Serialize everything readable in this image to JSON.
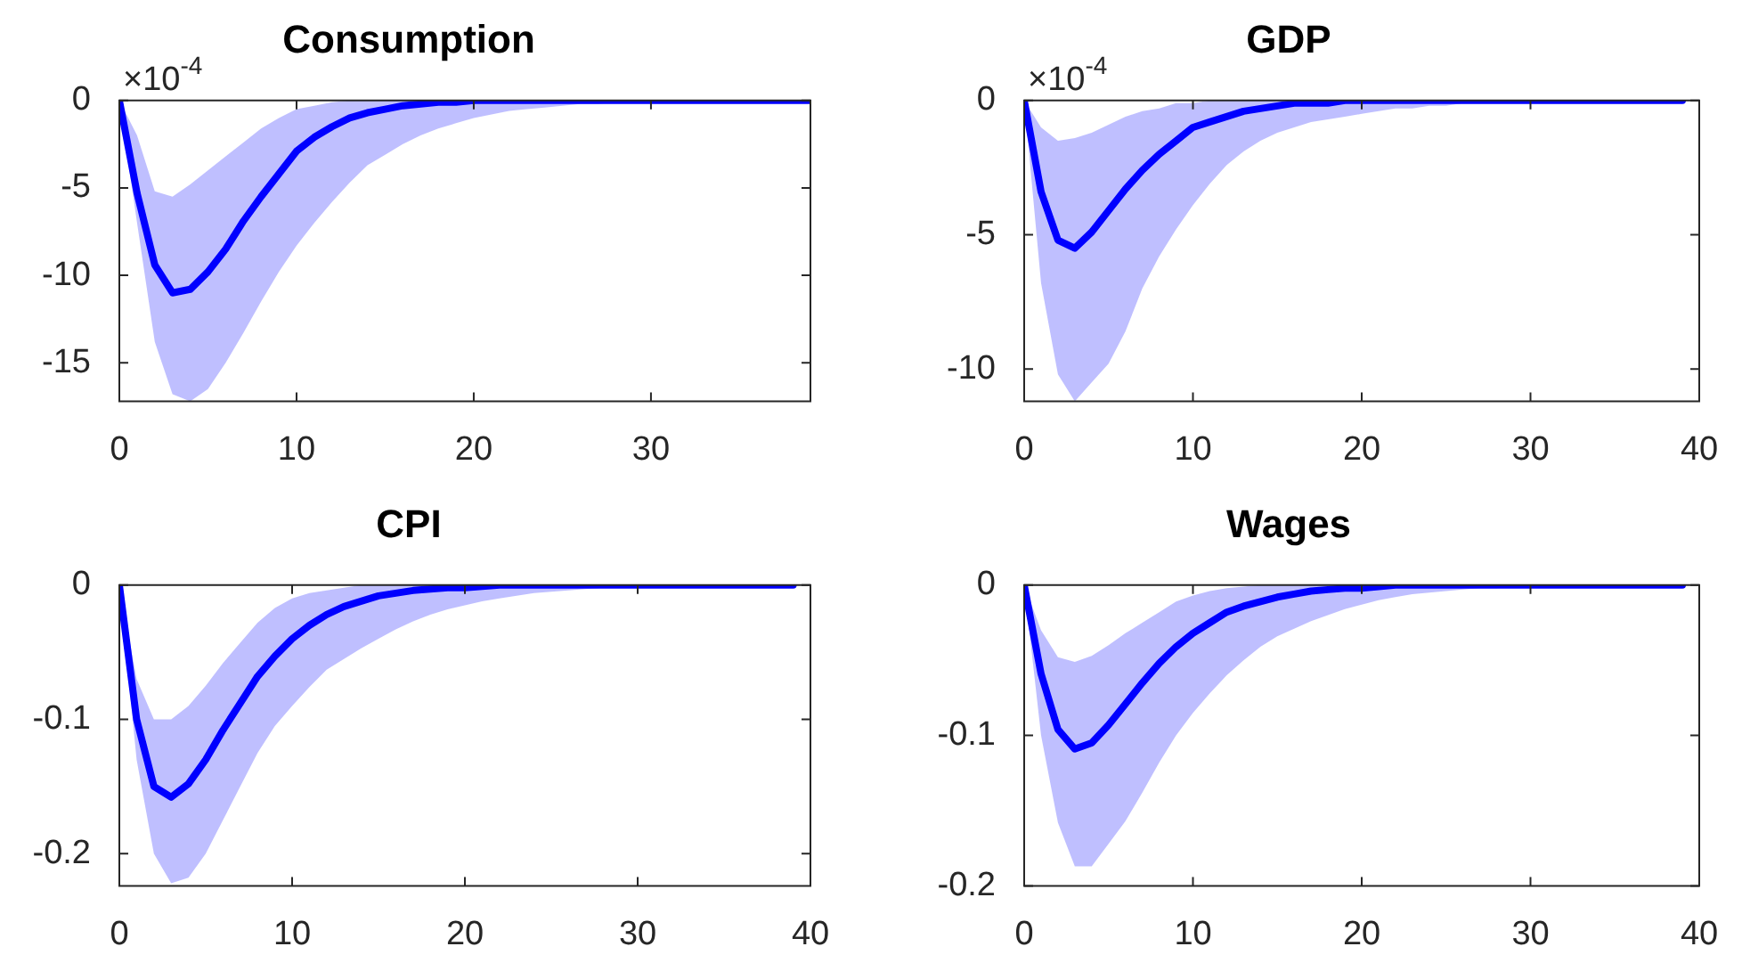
{
  "chart_data": [
    {
      "type": "line",
      "title": "Consumption",
      "annotations": [
        "×10$^{-4}$"
      ],
      "x": [
        0,
        1,
        2,
        3,
        4,
        5,
        6,
        7,
        8,
        9,
        10,
        11,
        12,
        13,
        14,
        15,
        16,
        17,
        18,
        19,
        20,
        21,
        22,
        23,
        24,
        25,
        26,
        27,
        28,
        29,
        30,
        31,
        32,
        33,
        34,
        35,
        36,
        37,
        38,
        39
      ],
      "xlim": [
        0,
        39
      ],
      "xticks": [
        0,
        10,
        20,
        30
      ],
      "ylim": [
        -17.2,
        0
      ],
      "yticks": [
        -15,
        -10,
        -5,
        0
      ],
      "series": [
        {
          "color": "#0000ff",
          "values": [
            0,
            -5.3,
            -9.4,
            -11,
            -10.8,
            -9.8,
            -8.5,
            -6.9,
            -5.5,
            -4.2,
            -2.9,
            -2.1,
            -1.5,
            -1,
            -0.7,
            -0.5,
            -0.3,
            -0.2,
            -0.1,
            -0.1,
            0,
            0,
            0,
            0,
            0,
            0,
            0,
            0,
            0,
            0,
            0,
            0,
            0,
            0,
            0,
            0,
            0,
            0,
            0,
            0
          ],
          "upper": [
            0,
            -2,
            -5.2,
            -5.5,
            -4.8,
            -4,
            -3.2,
            -2.4,
            -1.6,
            -1,
            -0.5,
            -0.3,
            -0.1,
            0,
            0,
            0,
            0,
            0,
            0,
            0,
            0,
            0,
            0,
            0,
            0,
            0,
            0,
            0,
            0,
            0,
            0,
            0,
            0,
            0,
            0,
            0,
            0,
            0,
            0,
            0
          ],
          "lower": [
            0,
            -7,
            -13.8,
            -16.8,
            -17.2,
            -16.5,
            -15,
            -13.3,
            -11.5,
            -9.8,
            -8.3,
            -7,
            -5.8,
            -4.7,
            -3.7,
            -3.1,
            -2.5,
            -2,
            -1.6,
            -1.3,
            -1,
            -0.8,
            -0.6,
            -0.5,
            -0.4,
            -0.3,
            -0.2,
            -0.2,
            -0.1,
            -0.1,
            0,
            0,
            0,
            0,
            0,
            0,
            0,
            0,
            0,
            0
          ]
        }
      ]
    },
    {
      "type": "line",
      "title": "GDP",
      "annotations": [
        "×10$^{-4}$"
      ],
      "x": [
        0,
        1,
        2,
        3,
        4,
        5,
        6,
        7,
        8,
        9,
        10,
        11,
        12,
        13,
        14,
        15,
        16,
        17,
        18,
        19,
        20,
        21,
        22,
        23,
        24,
        25,
        26,
        27,
        28,
        29,
        30,
        31,
        32,
        33,
        34,
        35,
        36,
        37,
        38,
        39
      ],
      "xlim": [
        0,
        40
      ],
      "xticks": [
        0,
        10,
        20,
        30,
        40
      ],
      "ylim": [
        -11.2,
        0
      ],
      "yticks": [
        -10,
        -5,
        0
      ],
      "series": [
        {
          "color": "#0000ff",
          "values": [
            0,
            -3.4,
            -5.2,
            -5.5,
            -4.9,
            -4.1,
            -3.3,
            -2.6,
            -2,
            -1.5,
            -1,
            -0.8,
            -0.6,
            -0.4,
            -0.3,
            -0.2,
            -0.1,
            -0.1,
            -0.1,
            0,
            0,
            0,
            0,
            0,
            0,
            0,
            0,
            0,
            0,
            0,
            0,
            0,
            0,
            0,
            0,
            0,
            0,
            0,
            0,
            0
          ],
          "upper": [
            0,
            -1,
            -1.5,
            -1.4,
            -1.2,
            -0.9,
            -0.6,
            -0.4,
            -0.3,
            -0.1,
            -0.1,
            0,
            0,
            0,
            0,
            0,
            0,
            0,
            0,
            0,
            0,
            0,
            0,
            0,
            0,
            0,
            0,
            0,
            0,
            0,
            0,
            0,
            0,
            0,
            0,
            0,
            0,
            0,
            0,
            0
          ],
          "lower": [
            0,
            -6.8,
            -10.2,
            -11.2,
            -10.5,
            -9.8,
            -8.6,
            -7,
            -5.8,
            -4.8,
            -3.9,
            -3.1,
            -2.4,
            -1.9,
            -1.5,
            -1.2,
            -1,
            -0.8,
            -0.7,
            -0.6,
            -0.5,
            -0.4,
            -0.3,
            -0.3,
            -0.2,
            -0.2,
            -0.1,
            -0.1,
            -0.1,
            -0.1,
            0,
            0,
            0,
            0,
            0,
            0,
            0,
            0,
            0,
            0
          ]
        }
      ]
    },
    {
      "type": "line",
      "title": "CPI",
      "x": [
        0,
        1,
        2,
        3,
        4,
        5,
        6,
        7,
        8,
        9,
        10,
        11,
        12,
        13,
        14,
        15,
        16,
        17,
        18,
        19,
        20,
        21,
        22,
        23,
        24,
        25,
        26,
        27,
        28,
        29,
        30,
        31,
        32,
        33,
        34,
        35,
        36,
        37,
        38,
        39
      ],
      "xlim": [
        0,
        40
      ],
      "xticks": [
        0,
        10,
        20,
        30,
        40
      ],
      "ylim": [
        -0.224,
        0
      ],
      "yticks": [
        -0.2,
        -0.1,
        0
      ],
      "series": [
        {
          "color": "#0000ff",
          "values": [
            0,
            -0.1,
            -0.15,
            -0.158,
            -0.148,
            -0.13,
            -0.108,
            -0.088,
            -0.068,
            -0.053,
            -0.04,
            -0.03,
            -0.022,
            -0.016,
            -0.012,
            -0.008,
            -0.006,
            -0.004,
            -0.003,
            -0.002,
            -0.002,
            -0.001,
            0,
            0,
            0,
            0,
            0,
            0,
            0,
            0,
            0,
            0,
            0,
            0,
            0,
            0,
            0,
            0,
            0,
            0
          ],
          "upper": [
            0,
            -0.07,
            -0.1,
            -0.1,
            -0.09,
            -0.075,
            -0.058,
            -0.043,
            -0.028,
            -0.017,
            -0.01,
            -0.006,
            -0.004,
            -0.002,
            0,
            0,
            0,
            0,
            0,
            0,
            0,
            0,
            0,
            0,
            0,
            0,
            0,
            0,
            0,
            0,
            0,
            0,
            0,
            0,
            0,
            0,
            0,
            0,
            0,
            0
          ],
          "lower": [
            0,
            -0.13,
            -0.2,
            -0.222,
            -0.218,
            -0.2,
            -0.175,
            -0.15,
            -0.125,
            -0.105,
            -0.09,
            -0.076,
            -0.063,
            -0.055,
            -0.047,
            -0.04,
            -0.033,
            -0.027,
            -0.022,
            -0.018,
            -0.015,
            -0.012,
            -0.01,
            -0.008,
            -0.006,
            -0.005,
            -0.004,
            -0.003,
            -0.002,
            -0.002,
            -0.001,
            0,
            0,
            0,
            0,
            0,
            0,
            0,
            0,
            0
          ]
        }
      ]
    },
    {
      "type": "line",
      "title": "Wages",
      "x": [
        0,
        1,
        2,
        3,
        4,
        5,
        6,
        7,
        8,
        9,
        10,
        11,
        12,
        13,
        14,
        15,
        16,
        17,
        18,
        19,
        20,
        21,
        22,
        23,
        24,
        25,
        26,
        27,
        28,
        29,
        30,
        31,
        32,
        33,
        34,
        35,
        36,
        37,
        38,
        39
      ],
      "xlim": [
        0,
        40
      ],
      "xticks": [
        0,
        10,
        20,
        30,
        40
      ],
      "ylim": [
        -0.2,
        0
      ],
      "yticks": [
        -0.2,
        -0.1,
        0
      ],
      "series": [
        {
          "color": "#0000ff",
          "values": [
            0,
            -0.059,
            -0.096,
            -0.109,
            -0.105,
            -0.093,
            -0.079,
            -0.065,
            -0.052,
            -0.041,
            -0.032,
            -0.025,
            -0.018,
            -0.014,
            -0.011,
            -0.008,
            -0.006,
            -0.004,
            -0.003,
            -0.002,
            -0.002,
            -0.001,
            0,
            0,
            0,
            0,
            0,
            0,
            0,
            0,
            0,
            0,
            0,
            0,
            0,
            0,
            0,
            0,
            0,
            0
          ],
          "upper": [
            0,
            -0.03,
            -0.048,
            -0.051,
            -0.047,
            -0.04,
            -0.032,
            -0.025,
            -0.018,
            -0.011,
            -0.007,
            -0.004,
            -0.002,
            -0.001,
            0,
            0,
            0,
            0,
            0,
            0,
            0,
            0,
            0,
            0,
            0,
            0,
            0,
            0,
            0,
            0,
            0,
            0,
            0,
            0,
            0,
            0,
            0,
            0,
            0,
            0
          ],
          "lower": [
            0,
            -0.1,
            -0.158,
            -0.187,
            -0.187,
            -0.172,
            -0.157,
            -0.138,
            -0.118,
            -0.1,
            -0.085,
            -0.072,
            -0.06,
            -0.05,
            -0.041,
            -0.034,
            -0.029,
            -0.024,
            -0.02,
            -0.016,
            -0.013,
            -0.01,
            -0.008,
            -0.006,
            -0.005,
            -0.004,
            -0.003,
            -0.002,
            -0.002,
            -0.001,
            0,
            0,
            0,
            0,
            0,
            0,
            0,
            0,
            0,
            0
          ]
        }
      ]
    }
  ]
}
